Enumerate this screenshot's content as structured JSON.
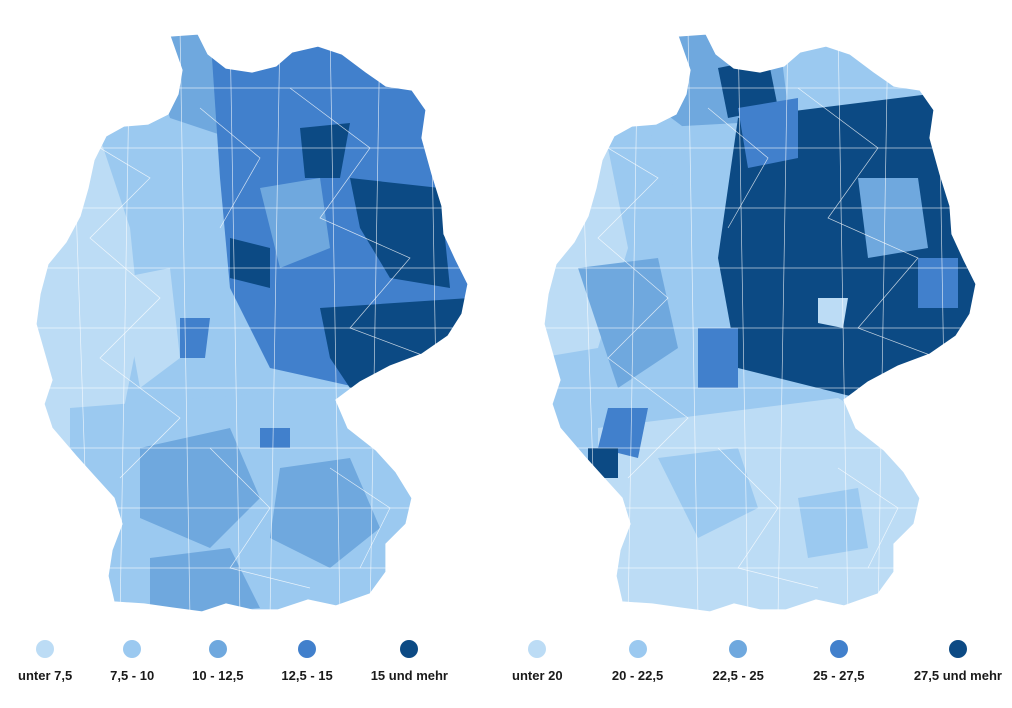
{
  "palette": [
    "#bcdcf5",
    "#9bc9f0",
    "#6fa8de",
    "#4180cc",
    "#0c4a84"
  ],
  "left_map": {
    "legend": [
      {
        "label": "unter 7,5",
        "color": "#bcdcf5"
      },
      {
        "label": "7,5 - 10",
        "color": "#9bc9f0"
      },
      {
        "label": "10 - 12,5",
        "color": "#6fa8de"
      },
      {
        "label": "12,5 - 15",
        "color": "#4180cc"
      },
      {
        "label": "15 und mehr",
        "color": "#0c4a84"
      }
    ]
  },
  "right_map": {
    "legend": [
      {
        "label": "unter 20",
        "color": "#bcdcf5"
      },
      {
        "label": "20 - 22,5",
        "color": "#9bc9f0"
      },
      {
        "label": "22,5 - 25",
        "color": "#6fa8de"
      },
      {
        "label": "25 - 27,5",
        "color": "#4180cc"
      },
      {
        "label": "27,5 und mehr",
        "color": "#0c4a84"
      }
    ]
  }
}
